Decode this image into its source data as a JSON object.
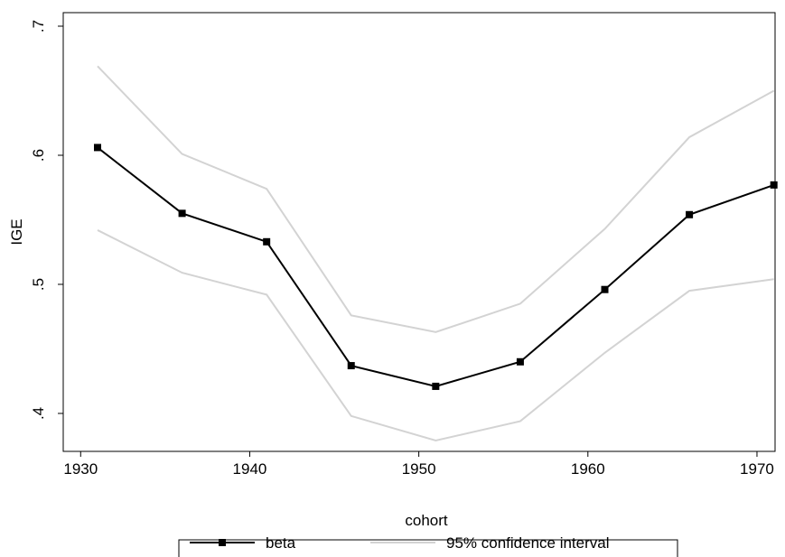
{
  "chart_data": {
    "type": "line",
    "x_label": "cohort",
    "y_label": "IGE",
    "x": [
      1931,
      1936,
      1941,
      1946,
      1951,
      1956,
      1961,
      1966,
      1971
    ],
    "series": [
      {
        "name": "beta",
        "color": "#000000",
        "marker": "square",
        "values": [
          0.606,
          0.555,
          0.533,
          0.437,
          0.421,
          0.44,
          0.496,
          0.554,
          0.577
        ]
      },
      {
        "name": "95% confidence interval",
        "color": "#d3d3d3",
        "upper": [
          0.669,
          0.601,
          0.574,
          0.476,
          0.463,
          0.485,
          0.543,
          0.614,
          0.65
        ],
        "lower": [
          0.542,
          0.509,
          0.492,
          0.398,
          0.379,
          0.394,
          0.447,
          0.495,
          0.504
        ]
      }
    ],
    "xlim": [
      1928.97,
      1971.07
    ],
    "xticks": [
      1930,
      1940,
      1950,
      1960,
      1970
    ],
    "ylim": [
      0.3706,
      0.7105
    ],
    "yticks": [
      {
        "value": 0.4,
        "label": ".4"
      },
      {
        "value": 0.5,
        "label": ".5"
      },
      {
        "value": 0.6,
        "label": ".6"
      },
      {
        "value": 0.7,
        "label": ".7"
      }
    ],
    "grid": false,
    "legend": "bottom"
  }
}
